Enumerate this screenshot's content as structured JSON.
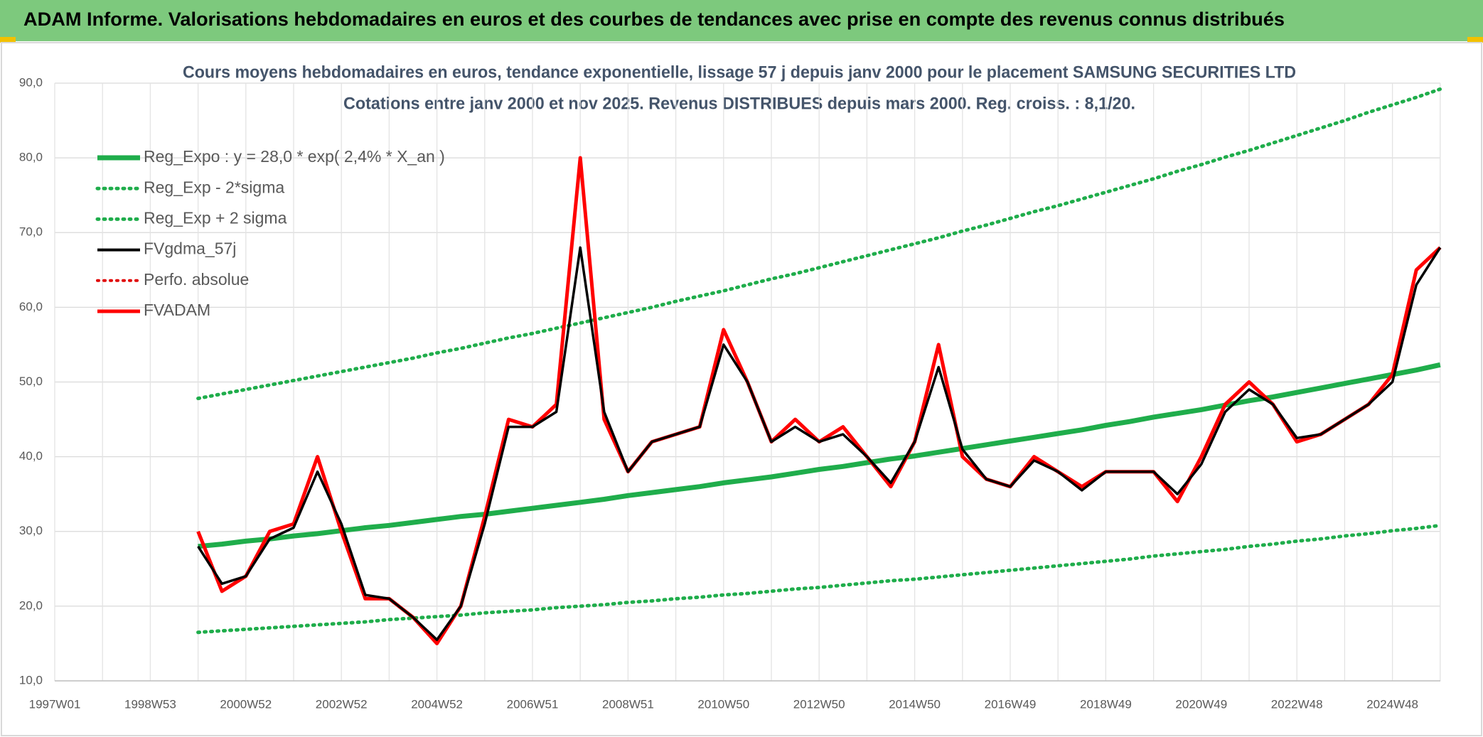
{
  "header": "ADAM Informe. Valorisations hebdomadaires en euros et des courbes de tendances avec prise en compte des revenus connus distribués",
  "chart_data": {
    "type": "line",
    "title": "Cours moyens hebdomadaires en euros, tendance exponentielle, lissage 57 j depuis janv 2000 pour le placement SAMSUNG SECURITIES LTD",
    "subtitle": "Cotations entre janv 2000 et nov 2025. Revenus DISTRIBUES depuis mars 2000. Reg. croiss. : 8,1/20.",
    "categories": [
      "1997W01",
      null,
      null,
      null,
      "1998W53",
      null,
      null,
      null,
      "2000W52",
      null,
      null,
      null,
      "2002W52",
      null,
      null,
      null,
      "2004W52",
      null,
      null,
      null,
      "2006W51",
      null,
      null,
      null,
      "2008W51",
      null,
      null,
      null,
      "2010W50",
      null,
      null,
      null,
      "2012W50",
      null,
      null,
      null,
      "2014W50",
      null,
      null,
      null,
      "2016W49",
      null,
      null,
      null,
      "2018W49",
      null,
      null,
      null,
      "2020W49",
      null,
      null,
      null,
      "2022W48",
      null,
      null,
      null,
      "2024W48",
      null,
      null
    ],
    "ylim": [
      10,
      90
    ],
    "yticks": [
      {
        "value": 10,
        "label": "10,0"
      },
      {
        "value": 20,
        "label": "20,0"
      },
      {
        "value": 30,
        "label": "30,0"
      },
      {
        "value": 40,
        "label": "40,0"
      },
      {
        "value": 50,
        "label": "50,0"
      },
      {
        "value": 60,
        "label": "60,0"
      },
      {
        "value": 70,
        "label": "70,0"
      },
      {
        "value": 80,
        "label": "80,0"
      },
      {
        "value": 90,
        "label": "90,0"
      }
    ],
    "grid": true,
    "legend": "upper left",
    "series": [
      {
        "name": "Reg_Expo : y = 28,0 * exp( 2,4% *  X_an )",
        "color": "#1fad4b",
        "line_style": "solid",
        "values": [
          null,
          null,
          null,
          null,
          null,
          null,
          28.0,
          28.3,
          28.7,
          29.0,
          29.4,
          29.7,
          30.1,
          30.5,
          30.8,
          31.2,
          31.6,
          32.0,
          32.3,
          32.7,
          33.1,
          33.5,
          33.9,
          34.3,
          34.8,
          35.2,
          35.6,
          36.0,
          36.5,
          36.9,
          37.3,
          37.8,
          38.3,
          38.7,
          39.2,
          39.7,
          40.1,
          40.6,
          41.1,
          41.6,
          42.1,
          42.6,
          43.1,
          43.6,
          44.2,
          44.7,
          45.3,
          45.8,
          46.3,
          46.9,
          47.5,
          48.0,
          48.6,
          49.2,
          49.8,
          50.4,
          51.0,
          51.6,
          52.3
        ]
      },
      {
        "name": "Reg_Exp - 2*sigma",
        "color": "#1fad4b",
        "line_style": "dotted",
        "values": [
          null,
          null,
          null,
          null,
          null,
          null,
          16.5,
          16.7,
          16.9,
          17.1,
          17.3,
          17.5,
          17.7,
          17.9,
          18.2,
          18.4,
          18.6,
          18.8,
          19.1,
          19.3,
          19.5,
          19.8,
          20.0,
          20.2,
          20.5,
          20.7,
          21.0,
          21.2,
          21.5,
          21.7,
          22.0,
          22.3,
          22.5,
          22.8,
          23.1,
          23.4,
          23.6,
          23.9,
          24.2,
          24.5,
          24.8,
          25.1,
          25.4,
          25.7,
          26.0,
          26.3,
          26.7,
          27.0,
          27.3,
          27.6,
          28.0,
          28.3,
          28.7,
          29.0,
          29.4,
          29.7,
          30.1,
          30.4,
          30.8
        ]
      },
      {
        "name": "Reg_Exp + 2 sigma",
        "color": "#1fad4b",
        "line_style": "dotted",
        "values": [
          null,
          null,
          null,
          null,
          null,
          null,
          47.8,
          48.4,
          49.0,
          49.6,
          50.2,
          50.8,
          51.4,
          52.0,
          52.6,
          53.2,
          53.9,
          54.5,
          55.2,
          55.9,
          56.5,
          57.2,
          57.9,
          58.6,
          59.3,
          60.0,
          60.8,
          61.5,
          62.2,
          63.0,
          63.8,
          64.5,
          65.3,
          66.1,
          66.9,
          67.7,
          68.5,
          69.3,
          70.2,
          71.0,
          71.9,
          72.8,
          73.6,
          74.5,
          75.4,
          76.3,
          77.2,
          78.2,
          79.1,
          80.1,
          81.0,
          82.0,
          83.0,
          84.0,
          85.0,
          86.1,
          87.1,
          88.1,
          89.2
        ]
      },
      {
        "name": "FVgdma_57j",
        "color": "#000000",
        "line_style": "solid",
        "values": [
          null,
          null,
          null,
          null,
          null,
          null,
          28,
          23,
          24,
          29,
          30.5,
          38,
          31,
          21.5,
          21,
          18.5,
          15.5,
          20,
          31,
          44,
          44,
          46,
          68,
          46,
          38,
          42,
          43,
          44,
          55,
          50,
          42,
          44,
          42,
          43,
          40,
          36.5,
          42,
          52,
          41,
          37,
          36,
          39.5,
          38,
          35.5,
          38,
          38,
          38,
          35,
          39,
          46,
          49,
          47,
          42.5,
          43,
          45,
          47,
          50,
          63,
          68
        ]
      },
      {
        "name": "Perfo. absolue",
        "color": "#e00000",
        "line_style": "dotted",
        "values": [
          null,
          null,
          null,
          null,
          null,
          null,
          null,
          null,
          null,
          null,
          null,
          null,
          null,
          null,
          null,
          null,
          null,
          null,
          null,
          null,
          null,
          null,
          null,
          null,
          null,
          null,
          null,
          null,
          null,
          null,
          null,
          null,
          null,
          null,
          null,
          null,
          null,
          null,
          null,
          null,
          null,
          null,
          null,
          null,
          null,
          null,
          null,
          null,
          null,
          null,
          null,
          null,
          null,
          null,
          null,
          null,
          null,
          null,
          null
        ]
      },
      {
        "name": "FVADAM",
        "color": "#ff0000",
        "line_style": "solid",
        "values": [
          null,
          null,
          null,
          null,
          null,
          null,
          30,
          22,
          24,
          30,
          31,
          40,
          30,
          21,
          21,
          18.5,
          15,
          20,
          32,
          45,
          44,
          47,
          80,
          45,
          38,
          42,
          43,
          44,
          57,
          50,
          42,
          45,
          42,
          44,
          40,
          36,
          42,
          55,
          40,
          37,
          36,
          40,
          38,
          36,
          38,
          38,
          38,
          34,
          40,
          47,
          50,
          47,
          42,
          43,
          45,
          47,
          51,
          65,
          68
        ]
      }
    ]
  }
}
